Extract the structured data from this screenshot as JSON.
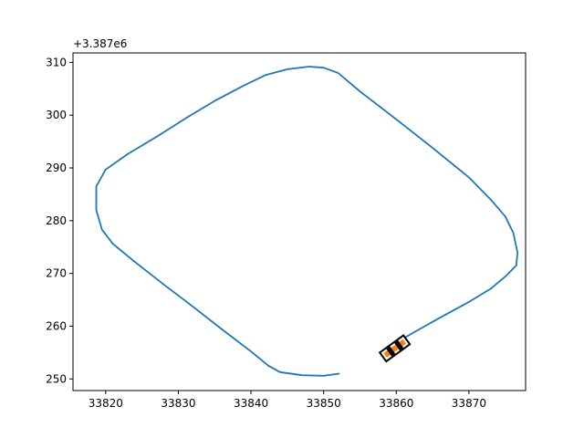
{
  "chart_data": {
    "type": "line",
    "title": "",
    "xlabel": "",
    "ylabel": "",
    "y_offset_text": "+3.387e6",
    "xlim": [
      33815.5,
      33877.8
    ],
    "ylim": [
      247.8,
      311.8
    ],
    "x_ticks": [
      33820,
      33830,
      33840,
      33850,
      33860,
      33870
    ],
    "y_ticks": [
      250,
      260,
      270,
      280,
      290,
      300,
      310
    ],
    "grid": false,
    "legend": "none",
    "series": [
      {
        "color": "#1f77b4",
        "x": [
          33852.1,
          33850.0,
          33847.0,
          33844.0,
          33842.4,
          33840.0,
          33836.0,
          33832.0,
          33828.0,
          33824.0,
          33821.0,
          33819.5,
          33818.7,
          33818.7,
          33820.0,
          33823.0,
          33827.0,
          33831.0,
          33835.0,
          33839.0,
          33842.0,
          33845.0,
          33848.0,
          33850.0,
          33852.0,
          33855.0,
          33860.0,
          33865.0,
          33870.0,
          33873.0,
          33875.0,
          33876.1,
          33876.7,
          33876.5,
          33875.0,
          33873.0,
          33870.0,
          33866.0,
          33862.0,
          33859.0
        ],
        "y": [
          251.0,
          250.6,
          250.7,
          251.3,
          252.5,
          255.2,
          259.4,
          263.7,
          267.9,
          272.2,
          275.6,
          278.3,
          282.0,
          286.5,
          289.7,
          292.6,
          295.9,
          299.4,
          302.7,
          305.6,
          307.6,
          308.7,
          309.2,
          309.0,
          308.0,
          304.5,
          299.2,
          293.8,
          288.2,
          284.0,
          280.8,
          277.7,
          273.9,
          271.5,
          269.4,
          267.1,
          264.6,
          261.6,
          258.5,
          256.0
        ]
      }
    ],
    "vehicle_marker": {
      "x": 33859.8,
      "y": 255.8,
      "heading_deg": 36,
      "colors": [
        "#000000",
        "#ff7f0e"
      ]
    }
  }
}
